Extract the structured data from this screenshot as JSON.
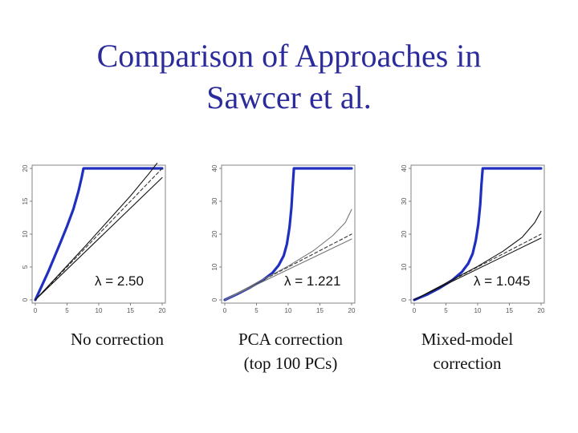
{
  "slide": {
    "title_lines": [
      "Comparison of Approaches in",
      "Sawcer et al."
    ],
    "title_color": "#2b2b9c"
  },
  "captions": [
    [
      "No correction"
    ],
    [
      "PCA correction",
      "(top 100 PCs)"
    ],
    [
      "Mixed-model",
      "correction"
    ]
  ],
  "chart_data": [
    {
      "type": "scatter",
      "title": "",
      "xlabel": "",
      "ylabel": "",
      "xlim": [
        0,
        20
      ],
      "ylim": [
        0,
        20
      ],
      "xticks": [
        "0",
        "5",
        "10",
        "15",
        "20"
      ],
      "yticks": [
        "0",
        "5",
        "10",
        "15",
        "20"
      ],
      "annotation": "λ = 2.50",
      "series": [
        {
          "points": [
            [
              0,
              0
            ],
            [
              1,
              2.1
            ],
            [
              2,
              4.2
            ],
            [
              3,
              6.5
            ],
            [
              4,
              8.8
            ],
            [
              5,
              11.2
            ],
            [
              6,
              13.8
            ],
            [
              6.8,
              16.5
            ],
            [
              7.3,
              18.6
            ],
            [
              7.6,
              20
            ],
            [
              9,
              20
            ],
            [
              12,
              20
            ],
            [
              15,
              20
            ],
            [
              18,
              20
            ],
            [
              20,
              20
            ]
          ],
          "color": "#1f2fbf"
        },
        {
          "points": [
            [
              0,
              0
            ],
            [
              20,
              20
            ]
          ],
          "color": "#333333",
          "dash": "4 3"
        },
        {
          "points": [
            [
              0,
              0
            ],
            [
              20,
              18.6
            ]
          ],
          "color": "#111111"
        },
        {
          "points": [
            [
              0,
              0
            ],
            [
              8,
              8.3
            ],
            [
              12,
              12.6
            ],
            [
              15,
              15.8
            ],
            [
              18,
              19.3
            ],
            [
              19.2,
              20.8
            ]
          ],
          "color": "#111111"
        }
      ]
    },
    {
      "type": "scatter",
      "title": "",
      "xlabel": "",
      "ylabel": "",
      "xlim": [
        0,
        20
      ],
      "ylim": [
        0,
        40
      ],
      "xticks": [
        "0",
        "5",
        "10",
        "15",
        "20"
      ],
      "yticks": [
        "0",
        "10",
        "20",
        "30",
        "40"
      ],
      "annotation": "λ = 1.221",
      "series": [
        {
          "points": [
            [
              0,
              0
            ],
            [
              2,
              1.8
            ],
            [
              4,
              3.8
            ],
            [
              6,
              6
            ],
            [
              7.5,
              8.2
            ],
            [
              8.5,
              10.5
            ],
            [
              9.3,
              13.5
            ],
            [
              9.8,
              17
            ],
            [
              10.2,
              22
            ],
            [
              10.5,
              28
            ],
            [
              10.7,
              34
            ],
            [
              10.9,
              40
            ],
            [
              12,
              40
            ],
            [
              15,
              40
            ],
            [
              18,
              40
            ],
            [
              20,
              40
            ]
          ],
          "color": "#1f2fbf"
        },
        {
          "points": [
            [
              0,
              0
            ],
            [
              20,
              20
            ]
          ],
          "color": "#333333",
          "dash": "4 3"
        },
        {
          "points": [
            [
              0,
              0
            ],
            [
              20,
              18.5
            ]
          ],
          "color": "#777777"
        },
        {
          "points": [
            [
              0,
              0
            ],
            [
              10,
              10.3
            ],
            [
              14,
              15
            ],
            [
              17,
              19.5
            ],
            [
              19,
              23.5
            ],
            [
              20,
              27.5
            ]
          ],
          "color": "#777777"
        }
      ]
    },
    {
      "type": "scatter",
      "title": "",
      "xlabel": "",
      "ylabel": "",
      "xlim": [
        0,
        20
      ],
      "ylim": [
        0,
        40
      ],
      "xticks": [
        "0",
        "5",
        "10",
        "15",
        "20"
      ],
      "yticks": [
        "0",
        "10",
        "20",
        "30",
        "40"
      ],
      "annotation": "λ = 1.045",
      "series": [
        {
          "points": [
            [
              0,
              0
            ],
            [
              2,
              1.6
            ],
            [
              4,
              3.6
            ],
            [
              6,
              6
            ],
            [
              7.5,
              8.5
            ],
            [
              8.5,
              11
            ],
            [
              9.2,
              14
            ],
            [
              9.7,
              18
            ],
            [
              10.1,
              23
            ],
            [
              10.4,
              29
            ],
            [
              10.6,
              35
            ],
            [
              10.8,
              40
            ],
            [
              12,
              40
            ],
            [
              15,
              40
            ],
            [
              18,
              40
            ],
            [
              20,
              40
            ]
          ],
          "color": "#1f2fbf"
        },
        {
          "points": [
            [
              0,
              0
            ],
            [
              20,
              20
            ]
          ],
          "color": "#333333",
          "dash": "4 3"
        },
        {
          "points": [
            [
              0,
              0
            ],
            [
              20,
              18.8
            ]
          ],
          "color": "#111111"
        },
        {
          "points": [
            [
              0,
              0
            ],
            [
              10,
              10.2
            ],
            [
              14,
              14.8
            ],
            [
              17,
              19
            ],
            [
              19,
              23.5
            ],
            [
              20,
              27
            ]
          ],
          "color": "#111111"
        }
      ]
    }
  ]
}
